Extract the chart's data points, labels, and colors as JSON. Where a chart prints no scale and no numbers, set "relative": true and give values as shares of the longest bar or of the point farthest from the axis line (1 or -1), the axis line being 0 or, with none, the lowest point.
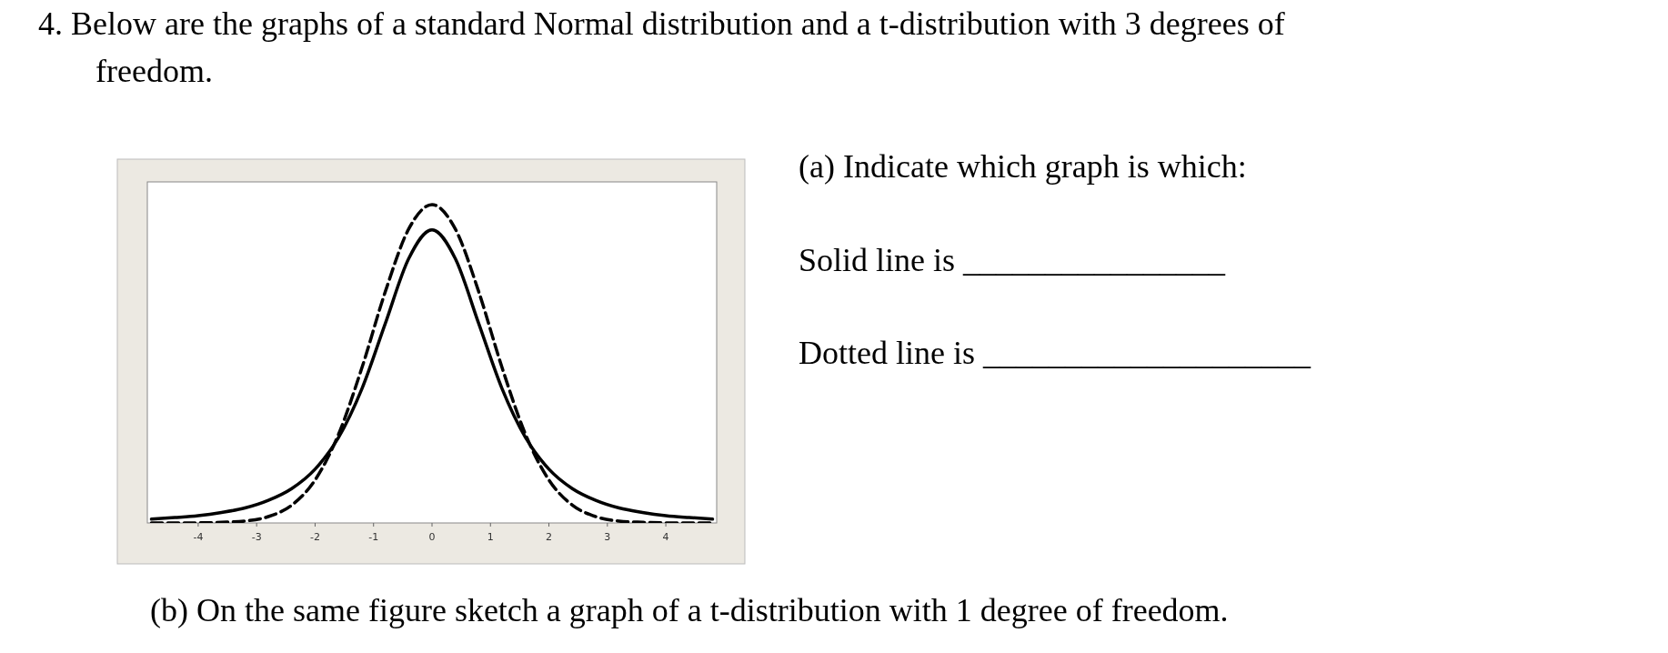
{
  "chart_data": {
    "type": "line",
    "title": "4.  Below are the graphs of a standard Normal distribution and a t-distribution with 3 degrees of freedom.",
    "annotations": [
      "(a) Indicate which graph is which:",
      "Solid line is ________________",
      "Dotted line is ____________________",
      "(b) On the same figure sketch a graph of a t-distribution with 1 degree of freedom."
    ],
    "x": [
      -4.8,
      -4.4,
      -4.0,
      -3.6,
      -3.2,
      -2.8,
      -2.4,
      -2.0,
      -1.6,
      -1.2,
      -0.8,
      -0.4,
      0,
      0.4,
      0.8,
      1.2,
      1.6,
      2.0,
      2.4,
      2.8,
      3.2,
      3.6,
      4.0,
      4.4,
      4.8
    ],
    "relative": true,
    "xlim": [
      -4.87,
      4.87
    ],
    "xticks": [
      -4,
      -3,
      -2,
      -1,
      0,
      1,
      2,
      3,
      4
    ],
    "grid": false,
    "series": [
      {
        "color": "#000000",
        "line_style": "solid",
        "values": [
          0.012,
          0.017,
          0.023,
          0.033,
          0.047,
          0.071,
          0.108,
          0.169,
          0.268,
          0.421,
          0.626,
          0.83,
          0.921,
          0.83,
          0.626,
          0.421,
          0.268,
          0.169,
          0.108,
          0.071,
          0.047,
          0.033,
          0.023,
          0.017,
          0.012
        ]
      },
      {
        "color": "#000000",
        "line_style": "dashed",
        "values": [
          0,
          0,
          0.0003,
          0.002,
          0.006,
          0.02,
          0.056,
          0.135,
          0.278,
          0.487,
          0.726,
          0.923,
          1,
          0.923,
          0.726,
          0.487,
          0.278,
          0.135,
          0.056,
          0.02,
          0.006,
          0.002,
          0.0003,
          0,
          0
        ]
      }
    ]
  }
}
